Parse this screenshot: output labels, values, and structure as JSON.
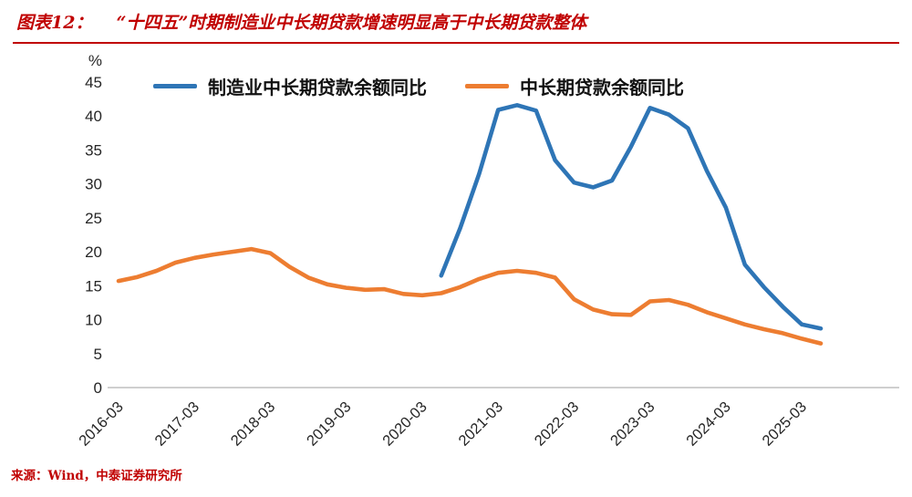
{
  "header": {
    "label": "图表12：",
    "title": "“十四五”时期制造业中长期贷款增速明显高于中长期贷款整体"
  },
  "footer": {
    "source": "来源：Wind，中泰证券研究所"
  },
  "colors": {
    "title_red": "#C00000",
    "axis_line": "#BFBFBF",
    "tick_text": "#262626",
    "blue_series": "#2E75B6",
    "orange_series": "#ED7D31"
  },
  "chart_data": {
    "type": "line",
    "title": "“十四五”时期制造业中长期贷款增速明显高于中长期贷款整体",
    "ylabel": "%",
    "xlabel": "",
    "ylim": [
      0,
      45
    ],
    "y_ticks": [
      0,
      5,
      10,
      15,
      20,
      25,
      30,
      35,
      40,
      45
    ],
    "x_tick_every": 4,
    "grid": false,
    "legend_position": "top",
    "categories": [
      "2016-03",
      "2016-06",
      "2016-09",
      "2016-12",
      "2017-03",
      "2017-06",
      "2017-09",
      "2017-12",
      "2018-03",
      "2018-06",
      "2018-09",
      "2018-12",
      "2019-03",
      "2019-06",
      "2019-09",
      "2019-12",
      "2020-03",
      "2020-06",
      "2020-09",
      "2020-12",
      "2021-03",
      "2021-06",
      "2021-09",
      "2021-12",
      "2022-03",
      "2022-06",
      "2022-09",
      "2022-12",
      "2023-03",
      "2023-06",
      "2023-09",
      "2023-12",
      "2024-03",
      "2024-06",
      "2024-09",
      "2024-12",
      "2025-03",
      "2025-06"
    ],
    "series": [
      {
        "name": "制造业中长期贷款余额同比",
        "color": "#2E75B6",
        "values": [
          null,
          null,
          null,
          null,
          null,
          null,
          null,
          null,
          null,
          null,
          null,
          null,
          null,
          null,
          null,
          null,
          null,
          16.5,
          23.5,
          31.5,
          40.9,
          41.6,
          40.8,
          33.5,
          30.2,
          29.5,
          30.5,
          35.5,
          41.2,
          40.2,
          38.2,
          31.9,
          26.5,
          18.1,
          14.8,
          11.9,
          9.3,
          8.7
        ]
      },
      {
        "name": "中长期贷款余额同比",
        "color": "#ED7D31",
        "values": [
          15.7,
          16.3,
          17.2,
          18.4,
          19.1,
          19.6,
          20.0,
          20.4,
          19.8,
          17.8,
          16.2,
          15.2,
          14.7,
          14.4,
          14.5,
          13.8,
          13.6,
          13.9,
          14.8,
          16.0,
          16.9,
          17.2,
          16.9,
          16.2,
          13.0,
          11.5,
          10.8,
          10.7,
          12.7,
          12.9,
          12.2,
          11.1,
          10.2,
          9.3,
          8.6,
          8.0,
          7.2,
          6.5
        ]
      }
    ]
  }
}
